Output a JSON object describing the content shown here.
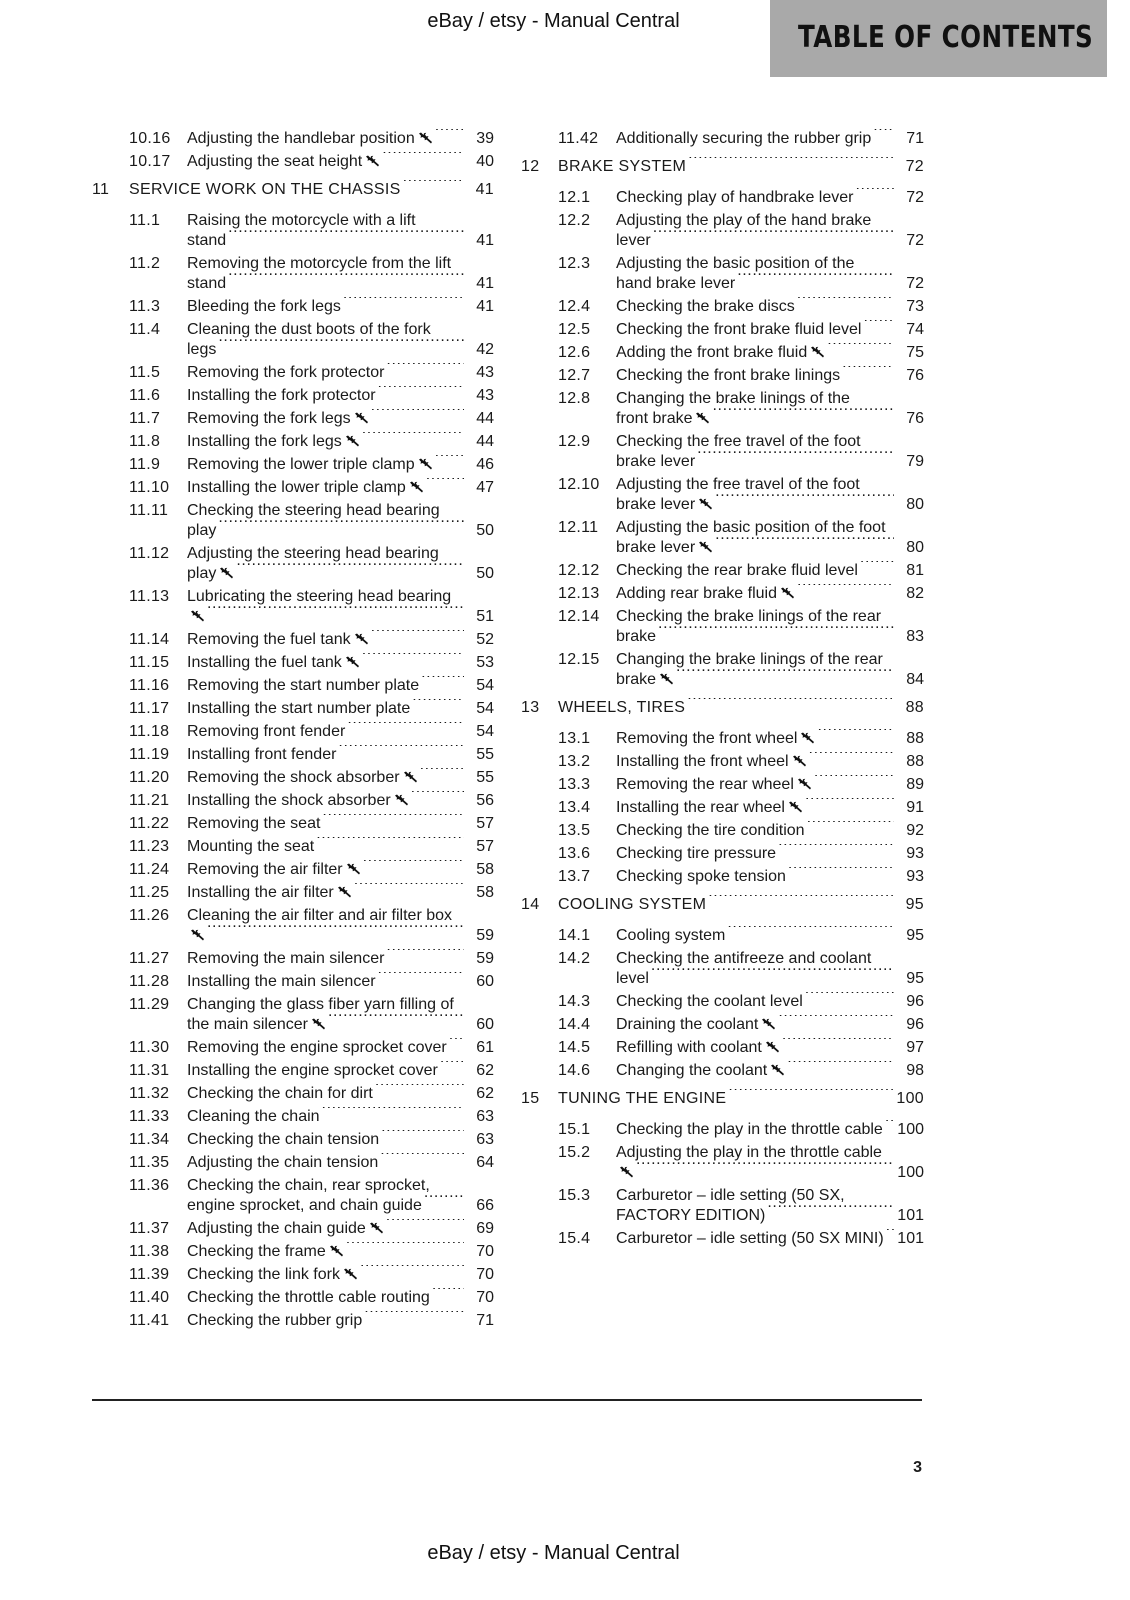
{
  "watermark": "eBay / etsy - Manual Central",
  "header": {
    "title": "TABLE OF CONTENTS",
    "background": "#a9a9a9"
  },
  "page_number": "3",
  "icons": {
    "wrench": "wrench-icon"
  },
  "columns": [
    [
      {
        "num": "10.16",
        "title": "Adjusting the handlebar position",
        "wrench": true,
        "page": "39"
      },
      {
        "num": "10.17",
        "title": "Adjusting the seat height",
        "wrench": true,
        "page": "40"
      },
      {
        "num": "11",
        "title": "SERVICE WORK ON THE CHASSIS",
        "page": "41",
        "chapter": true
      },
      {
        "num": "11.1",
        "title": "Raising the motorcycle with a lift stand",
        "page": "41"
      },
      {
        "num": "11.2",
        "title": "Removing the motorcycle from the lift stand",
        "page": "41"
      },
      {
        "num": "11.3",
        "title": "Bleeding the fork legs",
        "page": "41"
      },
      {
        "num": "11.4",
        "title": "Cleaning the dust boots of the fork legs",
        "page": "42"
      },
      {
        "num": "11.5",
        "title": "Removing the fork protector",
        "page": "43"
      },
      {
        "num": "11.6",
        "title": "Installing the fork protector",
        "page": "43"
      },
      {
        "num": "11.7",
        "title": "Removing the fork legs",
        "wrench": true,
        "page": "44"
      },
      {
        "num": "11.8",
        "title": "Installing the fork legs",
        "wrench": true,
        "page": "44"
      },
      {
        "num": "11.9",
        "title": "Removing the lower triple clamp",
        "wrench": true,
        "page": "46"
      },
      {
        "num": "11.10",
        "title": "Installing the lower triple clamp",
        "wrench": true,
        "page": "47"
      },
      {
        "num": "11.11",
        "title": "Checking the steering head bearing play",
        "page": "50"
      },
      {
        "num": "11.12",
        "title": "Adjusting the steering head bearing play",
        "wrench": true,
        "page": "50"
      },
      {
        "num": "11.13",
        "title": "Lubricating the steering head bearing",
        "wrench": true,
        "page": "51"
      },
      {
        "num": "11.14",
        "title": "Removing the fuel tank",
        "wrench": true,
        "page": "52"
      },
      {
        "num": "11.15",
        "title": "Installing the fuel tank",
        "wrench": true,
        "page": "53"
      },
      {
        "num": "11.16",
        "title": "Removing the start number plate",
        "page": "54"
      },
      {
        "num": "11.17",
        "title": "Installing the start number plate",
        "page": "54"
      },
      {
        "num": "11.18",
        "title": "Removing front fender",
        "page": "54"
      },
      {
        "num": "11.19",
        "title": "Installing front fender",
        "page": "55"
      },
      {
        "num": "11.20",
        "title": "Removing the shock absorber",
        "wrench": true,
        "page": "55"
      },
      {
        "num": "11.21",
        "title": "Installing the shock absorber",
        "wrench": true,
        "page": "56"
      },
      {
        "num": "11.22",
        "title": "Removing the seat",
        "page": "57"
      },
      {
        "num": "11.23",
        "title": "Mounting the seat",
        "page": "57"
      },
      {
        "num": "11.24",
        "title": "Removing the air filter",
        "wrench": true,
        "page": "58"
      },
      {
        "num": "11.25",
        "title": "Installing the air filter",
        "wrench": true,
        "page": "58"
      },
      {
        "num": "11.26",
        "title": "Cleaning the air filter and air filter box",
        "wrench": true,
        "page": "59"
      },
      {
        "num": "11.27",
        "title": "Removing the main silencer",
        "page": "59"
      },
      {
        "num": "11.28",
        "title": "Installing the main silencer",
        "page": "60"
      },
      {
        "num": "11.29",
        "title": "Changing the glass fiber yarn filling of the main silencer",
        "wrench": true,
        "page": "60"
      },
      {
        "num": "11.30",
        "title": "Removing the engine sprocket cover",
        "page": "61"
      },
      {
        "num": "11.31",
        "title": "Installing the engine sprocket cover",
        "page": "62"
      },
      {
        "num": "11.32",
        "title": "Checking the chain for dirt",
        "page": "62"
      },
      {
        "num": "11.33",
        "title": "Cleaning the chain",
        "page": "63"
      },
      {
        "num": "11.34",
        "title": "Checking the chain tension",
        "page": "63"
      },
      {
        "num": "11.35",
        "title": "Adjusting the chain tension",
        "page": "64"
      },
      {
        "num": "11.36",
        "title": "Checking the chain, rear sprocket, engine sprocket, and chain guide",
        "page": "66"
      },
      {
        "num": "11.37",
        "title": "Adjusting the chain guide",
        "wrench": true,
        "page": "69"
      },
      {
        "num": "11.38",
        "title": "Checking the frame",
        "wrench": true,
        "page": "70"
      },
      {
        "num": "11.39",
        "title": "Checking the link fork",
        "wrench": true,
        "page": "70"
      },
      {
        "num": "11.40",
        "title": "Checking the throttle cable routing",
        "page": "70"
      },
      {
        "num": "11.41",
        "title": "Checking the rubber grip",
        "page": "71"
      }
    ],
    [
      {
        "num": "11.42",
        "title": "Additionally securing the rubber grip",
        "page": "71"
      },
      {
        "num": "12",
        "title": "BRAKE SYSTEM",
        "page": "72",
        "chapter": true
      },
      {
        "num": "12.1",
        "title": "Checking play of handbrake lever",
        "page": "72"
      },
      {
        "num": "12.2",
        "title": "Adjusting the play of the hand brake lever",
        "page": "72"
      },
      {
        "num": "12.3",
        "title": "Adjusting the basic position of the hand brake lever",
        "page": "72"
      },
      {
        "num": "12.4",
        "title": "Checking the brake discs",
        "page": "73"
      },
      {
        "num": "12.5",
        "title": "Checking the front brake fluid level",
        "page": "74"
      },
      {
        "num": "12.6",
        "title": "Adding the front brake fluid",
        "wrench": true,
        "page": "75"
      },
      {
        "num": "12.7",
        "title": "Checking the front brake linings",
        "page": "76"
      },
      {
        "num": "12.8",
        "title": "Changing the brake linings of the front brake",
        "wrench": true,
        "page": "76"
      },
      {
        "num": "12.9",
        "title": "Checking the free travel of the foot brake lever",
        "page": "79"
      },
      {
        "num": "12.10",
        "title": "Adjusting the free travel of the foot brake lever",
        "wrench": true,
        "page": "80"
      },
      {
        "num": "12.11",
        "title": "Adjusting the basic position of the foot brake lever",
        "wrench": true,
        "page": "80"
      },
      {
        "num": "12.12",
        "title": "Checking the rear brake fluid level",
        "page": "81"
      },
      {
        "num": "12.13",
        "title": "Adding rear brake fluid",
        "wrench": true,
        "page": "82"
      },
      {
        "num": "12.14",
        "title": "Checking the brake linings of the rear brake",
        "page": "83"
      },
      {
        "num": "12.15",
        "title": "Changing the brake linings of the rear brake",
        "wrench": true,
        "page": "84"
      },
      {
        "num": "13",
        "title": "WHEELS, TIRES",
        "page": "88",
        "chapter": true
      },
      {
        "num": "13.1",
        "title": "Removing the front wheel",
        "wrench": true,
        "page": "88"
      },
      {
        "num": "13.2",
        "title": "Installing the front wheel",
        "wrench": true,
        "page": "88"
      },
      {
        "num": "13.3",
        "title": "Removing the rear wheel",
        "wrench": true,
        "page": "89"
      },
      {
        "num": "13.4",
        "title": "Installing the rear wheel",
        "wrench": true,
        "page": "91"
      },
      {
        "num": "13.5",
        "title": "Checking the tire condition",
        "page": "92"
      },
      {
        "num": "13.6",
        "title": "Checking tire pressure",
        "page": "93"
      },
      {
        "num": "13.7",
        "title": "Checking spoke tension",
        "page": "93"
      },
      {
        "num": "14",
        "title": "COOLING SYSTEM",
        "page": "95",
        "chapter": true
      },
      {
        "num": "14.1",
        "title": "Cooling system",
        "page": "95"
      },
      {
        "num": "14.2",
        "title": "Checking the antifreeze and coolant level",
        "page": "95"
      },
      {
        "num": "14.3",
        "title": "Checking the coolant level",
        "page": "96"
      },
      {
        "num": "14.4",
        "title": "Draining the coolant",
        "wrench": true,
        "page": "96"
      },
      {
        "num": "14.5",
        "title": "Refilling with coolant",
        "wrench": true,
        "page": "97"
      },
      {
        "num": "14.6",
        "title": "Changing the coolant",
        "wrench": true,
        "page": "98"
      },
      {
        "num": "15",
        "title": "TUNING THE ENGINE",
        "page": "100",
        "chapter": true
      },
      {
        "num": "15.1",
        "title": "Checking the play in the throttle cable",
        "page": "100"
      },
      {
        "num": "15.2",
        "title": "Adjusting the play in the throttle cable",
        "wrench": true,
        "page": "100"
      },
      {
        "num": "15.3",
        "title": "Carburetor – idle setting (50 SX, FACTORY EDITION)",
        "page": "101"
      },
      {
        "num": "15.4",
        "title": "Carburetor – idle setting (50 SX MINI)",
        "page": "101"
      }
    ]
  ]
}
